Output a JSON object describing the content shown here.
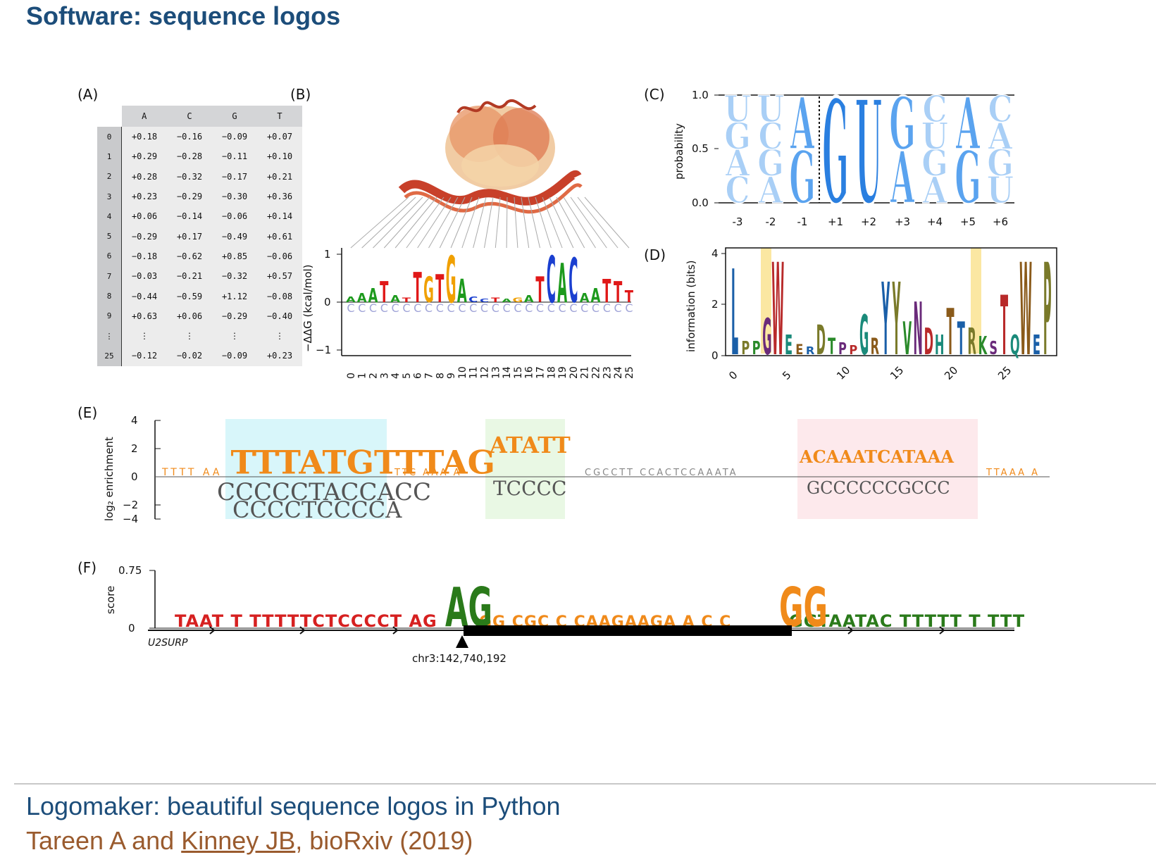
{
  "title": "Software: sequence logos",
  "panels": {
    "A": {
      "label": "(A)",
      "columns": [
        "A",
        "C",
        "G",
        "T"
      ],
      "rows": [
        {
          "idx": "0",
          "vals": [
            "+0.18",
            "−0.16",
            "−0.09",
            "+0.07"
          ]
        },
        {
          "idx": "1",
          "vals": [
            "+0.29",
            "−0.28",
            "−0.11",
            "+0.10"
          ]
        },
        {
          "idx": "2",
          "vals": [
            "+0.28",
            "−0.32",
            "−0.17",
            "+0.21"
          ]
        },
        {
          "idx": "3",
          "vals": [
            "+0.23",
            "−0.29",
            "−0.30",
            "+0.36"
          ]
        },
        {
          "idx": "4",
          "vals": [
            "+0.06",
            "−0.14",
            "−0.06",
            "+0.14"
          ]
        },
        {
          "idx": "5",
          "vals": [
            "−0.29",
            "+0.17",
            "−0.49",
            "+0.61"
          ]
        },
        {
          "idx": "6",
          "vals": [
            "−0.18",
            "−0.62",
            "+0.85",
            "−0.06"
          ]
        },
        {
          "idx": "7",
          "vals": [
            "−0.03",
            "−0.21",
            "−0.32",
            "+0.57"
          ]
        },
        {
          "idx": "8",
          "vals": [
            "−0.44",
            "−0.59",
            "+1.12",
            "−0.08"
          ]
        },
        {
          "idx": "9",
          "vals": [
            "+0.63",
            "+0.06",
            "−0.29",
            "−0.40"
          ]
        },
        {
          "idx": "⋮",
          "vals": [
            "⋮",
            "⋮",
            "⋮",
            "⋮"
          ]
        },
        {
          "idx": "25",
          "vals": [
            "−0.12",
            "−0.02",
            "−0.09",
            "+0.23"
          ]
        }
      ]
    },
    "B": {
      "label": "(B)",
      "ylabel": "−ΔΔG (kcal/mol)",
      "yticks": [
        "1",
        "0",
        "−1"
      ],
      "xticks": [
        "0",
        "1",
        "2",
        "3",
        "4",
        "5",
        "6",
        "7",
        "8",
        "9",
        "10",
        "11",
        "12",
        "13",
        "14",
        "15",
        "16",
        "17",
        "18",
        "19",
        "20",
        "21",
        "22",
        "23",
        "24",
        "25"
      ],
      "top_letters": [
        "A",
        "A",
        "A",
        "T",
        "A",
        "T",
        "T",
        "G",
        "T",
        "G",
        "A",
        "C",
        "C",
        "T",
        "A",
        "G",
        "A",
        "T",
        "C",
        "A",
        "C",
        "A",
        "A",
        "T",
        "T",
        "T"
      ],
      "top_heights": [
        0.12,
        0.2,
        0.3,
        0.45,
        0.15,
        0.1,
        0.65,
        0.55,
        0.6,
        1.0,
        0.5,
        0.12,
        0.08,
        0.1,
        0.08,
        0.1,
        0.15,
        0.55,
        1.0,
        0.85,
        0.95,
        0.2,
        0.3,
        0.5,
        0.45,
        0.25
      ]
    },
    "C": {
      "label": "(C)",
      "ylabel": "probability",
      "yticks": [
        "1.0",
        "0.5",
        "0.0"
      ],
      "xticks": [
        "-3",
        "-2",
        "-1",
        "+1",
        "+2",
        "+3",
        "+4",
        "+5",
        "+6"
      ],
      "stacks": [
        [
          "C",
          "A",
          "G",
          "U"
        ],
        [
          "A",
          "G",
          "C",
          "U"
        ],
        [
          "G",
          "A"
        ],
        [
          "G"
        ],
        [
          "U"
        ],
        [
          "A",
          "G"
        ],
        [
          "A",
          "G",
          "U",
          "C"
        ],
        [
          "G",
          "A"
        ],
        [
          "U",
          "G",
          "A",
          "C"
        ]
      ]
    },
    "D": {
      "label": "(D)",
      "ylabel": "information (bits)",
      "yticks": [
        "4",
        "2",
        "0"
      ],
      "xticks": [
        "0",
        "5",
        "10",
        "15",
        "20",
        "25"
      ],
      "main_letters": [
        "L",
        "P",
        "P",
        "G",
        "W",
        "E",
        "E",
        "R",
        "D",
        "T",
        "P",
        "P",
        "G",
        "R",
        "Y",
        "Y",
        "V",
        "N",
        "D",
        "H",
        "T",
        "T",
        "R",
        "K",
        "S",
        "T",
        "Q",
        "W",
        "E",
        "P"
      ]
    },
    "E": {
      "label": "(E)",
      "ylabel": "log₂ enrichment",
      "yticks": [
        "4",
        "2",
        "0",
        "−2",
        "−4"
      ],
      "region1_top": "TTTATGTTTAG",
      "region1_bottom": "CCCCCTACCACC",
      "region1_bottom2": "CCCCTCCCCA",
      "region2_top": "ATATT",
      "region2_bottom": "TCCCC",
      "region3_top": "ACAAATCATAAA",
      "region3_bottom": "GCCCCCCGCCC",
      "colors": {
        "region1": "#d8f6fa",
        "region2": "#e9f8e4",
        "region3": "#fde9ec"
      }
    },
    "F": {
      "label": "(F)",
      "ylabel": "score",
      "yticks": [
        "0.75",
        "0"
      ],
      "logo_text_left": "TAAT  T TTTTTCTCCCCT AG",
      "logo_text_mid": "GG CGC C CAAGAAGA A C C",
      "logo_text_right": "GGTAATAC TTTTT T TTT",
      "gene": "U2SURP",
      "coord": "chr3:142,740,192"
    }
  },
  "citation": {
    "title": "Logomaker: beautiful sequence logos in Python",
    "authors_pre": "Tareen A and ",
    "authors_link": "Kinney JB",
    "authors_post": ", bioRxiv (2019)"
  }
}
